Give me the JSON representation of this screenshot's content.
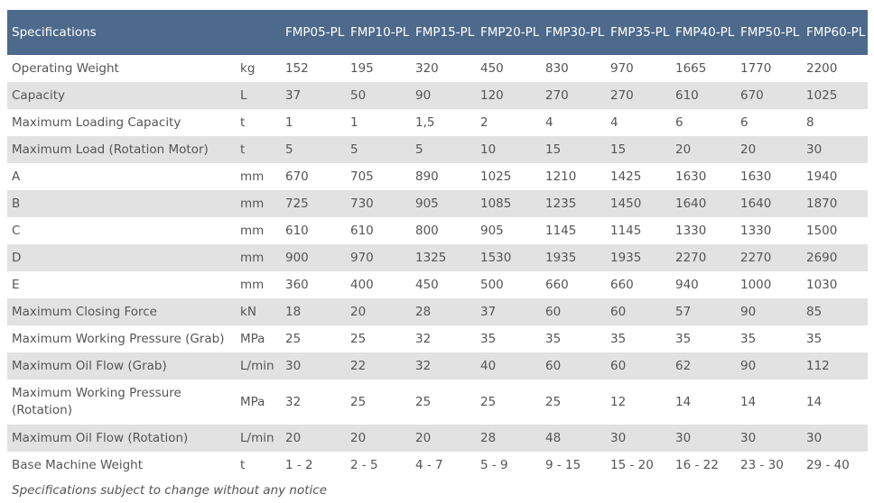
{
  "table": {
    "header": {
      "title": "Specifications",
      "models": [
        "FMP05-PL",
        "FMP10-PL",
        "FMP15-PL",
        "FMP20-PL",
        "FMP30-PL",
        "FMP35-PL",
        "FMP40-PL",
        "FMP50-PL",
        "FMP60-PL"
      ]
    },
    "rows": [
      {
        "name": "Operating Weight",
        "unit": "kg",
        "values": [
          "152",
          "195",
          "320",
          "450",
          "830",
          "970",
          "1665",
          "1770",
          "2200"
        ]
      },
      {
        "name": "Capacity",
        "unit": "L",
        "values": [
          "37",
          "50",
          "90",
          "120",
          "270",
          "270",
          "610",
          "670",
          "1025"
        ]
      },
      {
        "name": "Maximum Loading Capacity",
        "unit": "t",
        "values": [
          "1",
          "1",
          "1,5",
          "2",
          "4",
          "4",
          "6",
          "6",
          "8"
        ]
      },
      {
        "name": "Maximum Load (Rotation Motor)",
        "unit": "t",
        "values": [
          "5",
          "5",
          "5",
          "10",
          "15",
          "15",
          "20",
          "20",
          "30"
        ]
      },
      {
        "name": "A",
        "unit": "mm",
        "values": [
          "670",
          "705",
          "890",
          "1025",
          "1210",
          "1425",
          "1630",
          "1630",
          "1940"
        ]
      },
      {
        "name": "B",
        "unit": "mm",
        "values": [
          "725",
          "730",
          "905",
          "1085",
          "1235",
          "1450",
          "1640",
          "1640",
          "1870"
        ]
      },
      {
        "name": "C",
        "unit": "mm",
        "values": [
          "610",
          "610",
          "800",
          "905",
          "1145",
          "1145",
          "1330",
          "1330",
          "1500"
        ]
      },
      {
        "name": "D",
        "unit": "mm",
        "values": [
          "900",
          "970",
          "1325",
          "1530",
          "1935",
          "1935",
          "2270",
          "2270",
          "2690"
        ]
      },
      {
        "name": "E",
        "unit": "mm",
        "values": [
          "360",
          "400",
          "450",
          "500",
          "660",
          "660",
          "940",
          "1000",
          "1030"
        ]
      },
      {
        "name": "Maximum Closing Force",
        "unit": "kN",
        "values": [
          "18",
          "20",
          "28",
          "37",
          "60",
          "60",
          "57",
          "90",
          "85"
        ]
      },
      {
        "name": "Maximum Working Pressure (Grab)",
        "unit": "MPa",
        "values": [
          "25",
          "25",
          "32",
          "35",
          "35",
          "35",
          "35",
          "35",
          "35"
        ]
      },
      {
        "name": "Maximum Oil Flow (Grab)",
        "unit": "L/min",
        "values": [
          "30",
          "22",
          "32",
          "40",
          "60",
          "60",
          "62",
          "90",
          "112"
        ]
      },
      {
        "name": "Maximum Working Pressure (Rotation)",
        "unit": "MPa",
        "values": [
          "32",
          "25",
          "25",
          "25",
          "25",
          "12",
          "14",
          "14",
          "14"
        ]
      },
      {
        "name": "Maximum Oil Flow (Rotation)",
        "unit": "L/min",
        "values": [
          "20",
          "20",
          "20",
          "28",
          "48",
          "30",
          "30",
          "30",
          "30"
        ]
      },
      {
        "name": "Base Machine Weight",
        "unit": "t",
        "values": [
          "1 - 2",
          "2 - 5",
          "4 - 7",
          "5 - 9",
          "9 - 15",
          "15 - 20",
          "16 - 22",
          "23 - 30",
          "29 - 40"
        ]
      }
    ]
  },
  "note": "Specifications subject to change without any notice",
  "colors": {
    "header_bg": "#4d6a8c",
    "header_text": "#ffffff",
    "stripe_bg": "#e2e2e2",
    "body_text": "#555555"
  }
}
